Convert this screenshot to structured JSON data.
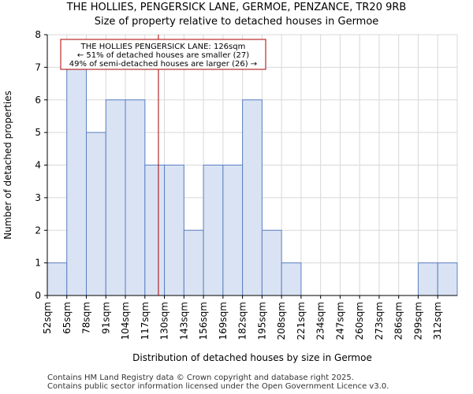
{
  "chart_data": {
    "type": "bar",
    "title": "THE HOLLIES, PENGERSICK LANE, GERMOE, PENZANCE, TR20 9RB",
    "subtitle": "Size of property relative to detached houses in Germoe",
    "xlabel": "Distribution of detached houses by size in Germoe",
    "ylabel": "Number of detached properties",
    "categories": [
      "52sqm",
      "65sqm",
      "78sqm",
      "91sqm",
      "104sqm",
      "117sqm",
      "130sqm",
      "143sqm",
      "156sqm",
      "169sqm",
      "182sqm",
      "195sqm",
      "208sqm",
      "221sqm",
      "234sqm",
      "247sqm",
      "260sqm",
      "273sqm",
      "286sqm",
      "299sqm",
      "312sqm"
    ],
    "bin_edges": [
      52,
      65,
      78,
      91,
      104,
      117,
      130,
      143,
      156,
      169,
      182,
      195,
      208,
      221,
      234,
      247,
      260,
      273,
      286,
      299,
      312,
      325
    ],
    "values": [
      1,
      7,
      5,
      6,
      6,
      4,
      4,
      2,
      4,
      4,
      6,
      2,
      1,
      0,
      0,
      0,
      0,
      0,
      0,
      1,
      1
    ],
    "highlight_bins": 6,
    "ylim": [
      0,
      8
    ],
    "yticks": [
      0,
      1,
      2,
      3,
      4,
      5,
      6,
      7,
      8
    ],
    "marker_value": 126,
    "annotation": {
      "line1": "THE HOLLIES PENGERSICK LANE: 126sqm",
      "line2": "← 51% of detached houses are smaller (27)",
      "line3": "49% of semi-detached houses are larger (26) →"
    },
    "colors": {
      "bar_fill": "#dae3f3",
      "bar_fill_highlight": "#dae3f3",
      "bar_stroke": "#5b7fc4",
      "marker": "#aa0000",
      "grid": "#d8d8d8"
    },
    "grid": true
  },
  "footer": {
    "line1": "Contains HM Land Registry data © Crown copyright and database right 2025.",
    "line2": "Contains public sector information licensed under the Open Government Licence v3.0."
  }
}
